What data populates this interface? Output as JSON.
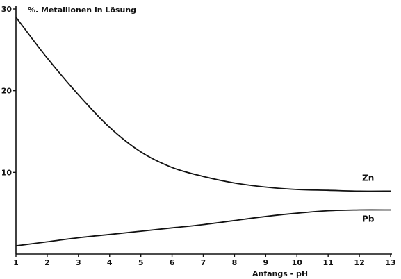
{
  "chart_data": {
    "type": "line",
    "title": "",
    "ylabel": "%. Metallionen in Lösung",
    "xlabel": "Anfangs - pH",
    "xlim": [
      1,
      13
    ],
    "ylim": [
      0,
      30
    ],
    "x_ticks": [
      "1",
      "2",
      "3",
      "4",
      "5",
      "6",
      "7",
      "8",
      "9",
      "10",
      "11",
      "12",
      "13"
    ],
    "y_ticks": [
      "10",
      "20",
      "30"
    ],
    "grid": false,
    "series": [
      {
        "name": "Zn",
        "x": [
          1,
          2,
          3,
          4,
          5,
          6,
          7,
          8,
          9,
          10,
          11,
          12,
          13
        ],
        "y": [
          29,
          24,
          19.5,
          15.5,
          12.5,
          10.6,
          9.5,
          8.7,
          8.2,
          7.9,
          7.8,
          7.7,
          7.7
        ]
      },
      {
        "name": "Pb",
        "x": [
          1,
          2,
          3,
          4,
          5,
          6,
          7,
          8,
          9,
          10,
          11,
          12,
          13
        ],
        "y": [
          1.0,
          1.5,
          2.0,
          2.4,
          2.8,
          3.2,
          3.6,
          4.1,
          4.6,
          5.0,
          5.3,
          5.4,
          5.4
        ]
      }
    ]
  }
}
